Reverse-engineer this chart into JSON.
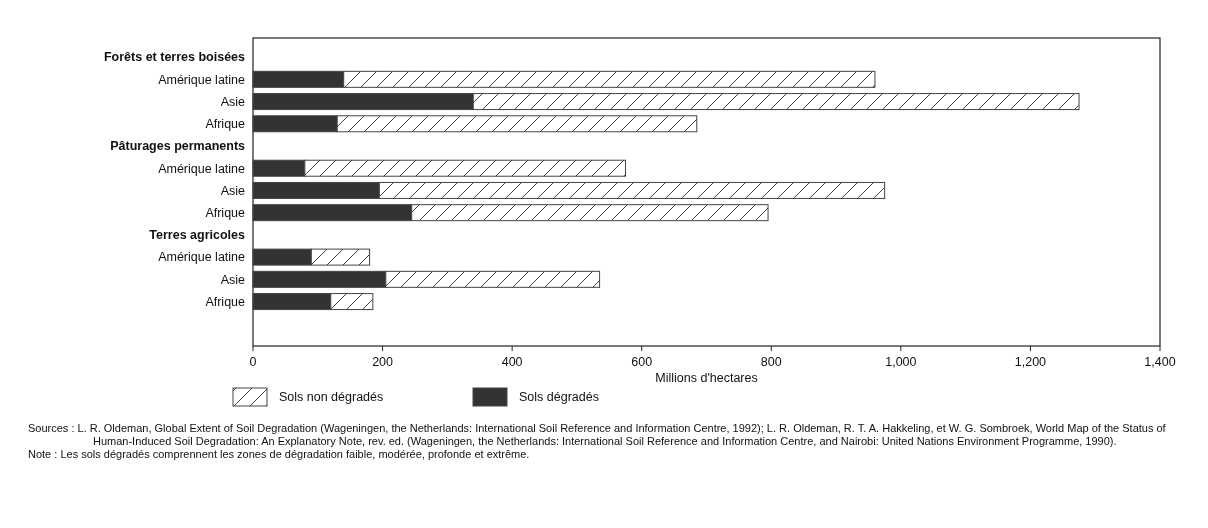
{
  "chart_data": {
    "type": "bar",
    "orientation": "horizontal",
    "stacked": true,
    "categories": [
      "Forêts et terres boisées",
      "Amérique latine",
      "Asie",
      "Afrique",
      "Pâturages permanents",
      "Amérique latine",
      "Asie",
      "Afrique",
      "Terres agricoles",
      "Amérique latine",
      "Asie",
      "Afrique"
    ],
    "series": [
      {
        "name": "Sols dégradés",
        "color": "#333333",
        "values": [
          null,
          140,
          340,
          130,
          null,
          80,
          195,
          245,
          null,
          90,
          205,
          120
        ]
      },
      {
        "name": "Sols non dégradés",
        "color": "#444444",
        "values": [
          null,
          820,
          935,
          555,
          null,
          495,
          780,
          550,
          null,
          90,
          330,
          65
        ]
      }
    ],
    "xlim": [
      0,
      1400
    ],
    "xticks": [
      0,
      200,
      400,
      600,
      800,
      {
        "value": 1000,
        "label": "1,000"
      },
      {
        "value": 1200,
        "label": "1,200"
      },
      {
        "value": 1400,
        "label": "1,400"
      }
    ],
    "xlabel": "Millions d'hectares",
    "legend": "bottom",
    "annotations": [
      "Sources : L. R. Oldeman, Global Extent of Soil Degradation (Wageningen, the Netherlands: International Soil Reference and Information Centre, 1992); L. R. Oldeman, R. T. A. Hakkeling, et W. G. Sombroek, World Map of the Status of Human-Induced Soil Degradation: An Explanatory Note, rev. ed. (Wageningen, the Netherlands: International Soil Reference and Information Centre, and Nairobi: United Nations Environment Programme, 1990).",
      "Note : Les sols dégradés comprennent les zones de dégradation faible, modérée, profonde et extrême."
    ]
  }
}
